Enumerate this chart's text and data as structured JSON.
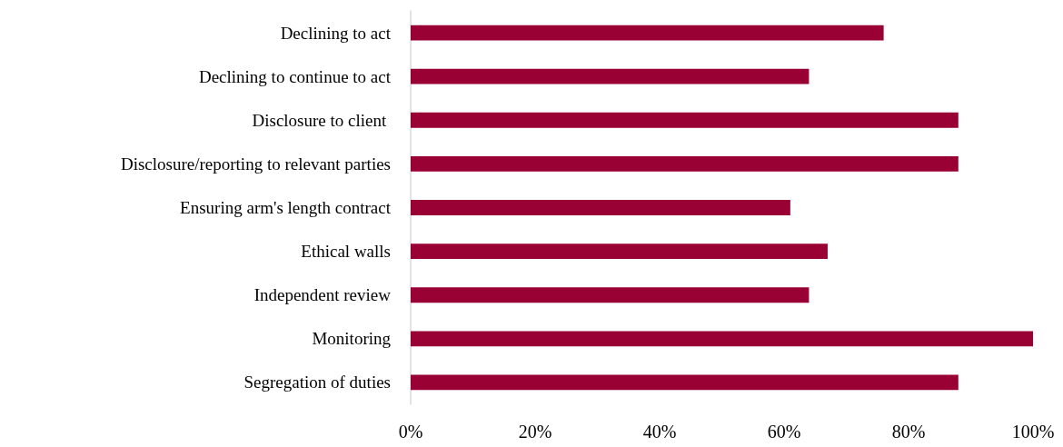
{
  "chart_data": {
    "type": "bar",
    "orientation": "horizontal",
    "categories": [
      "Declining to act",
      "Declining to continue to act",
      "Disclosure to client ",
      "Disclosure/reporting to relevant parties",
      "Ensuring arm's length contract",
      "Ethical walls",
      "Independent review",
      "Monitoring",
      "Segregation of duties"
    ],
    "values": [
      76,
      64,
      88,
      88,
      61,
      67,
      64,
      100,
      88
    ],
    "color": "#990033",
    "xlim": [
      0,
      100
    ],
    "xticks": [
      {
        "value": 0,
        "label": "0%"
      },
      {
        "value": 20,
        "label": "20%"
      },
      {
        "value": 40,
        "label": "40%"
      },
      {
        "value": 60,
        "label": "60%"
      },
      {
        "value": 80,
        "label": "80%"
      },
      {
        "value": 100,
        "label": "100%"
      }
    ],
    "grid": false
  }
}
